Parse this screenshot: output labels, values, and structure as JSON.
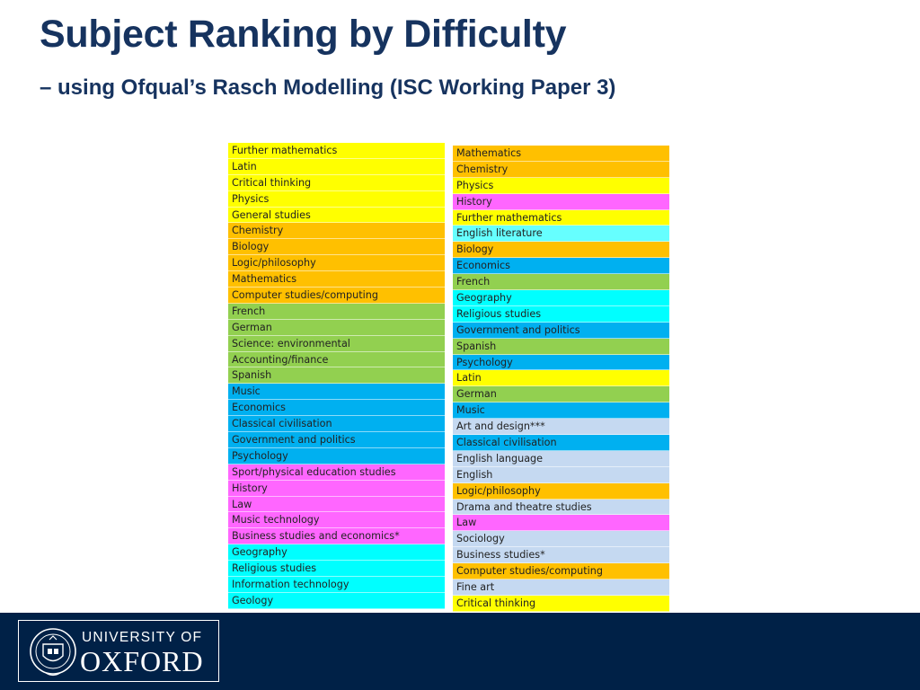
{
  "title": "Subject Ranking by Difficulty",
  "subtitle": "– using Ofqual’s Rasch Modelling (ISC Working Paper 3)",
  "colors": {
    "yellow": "#ffff00",
    "orange": "#ffc000",
    "green": "#92d050",
    "blue": "#00b0f0",
    "magenta": "#ff66ff",
    "cyan": "#00ffff",
    "lightcyan": "#66ffff",
    "lightblue": "#c5d9f1",
    "title": "#16335f",
    "footer": "#002147"
  },
  "left_column": [
    {
      "label": "Further mathematics",
      "color": "yellow"
    },
    {
      "label": "Latin",
      "color": "yellow"
    },
    {
      "label": "Critical thinking",
      "color": "yellow"
    },
    {
      "label": "Physics",
      "color": "yellow"
    },
    {
      "label": "General studies",
      "color": "yellow"
    },
    {
      "label": "Chemistry",
      "color": "orange"
    },
    {
      "label": "Biology",
      "color": "orange"
    },
    {
      "label": "Logic/philosophy",
      "color": "orange"
    },
    {
      "label": "Mathematics",
      "color": "orange"
    },
    {
      "label": "Computer studies/computing",
      "color": "orange"
    },
    {
      "label": "French",
      "color": "green"
    },
    {
      "label": "German",
      "color": "green"
    },
    {
      "label": "Science: environmental",
      "color": "green"
    },
    {
      "label": "Accounting/finance",
      "color": "green"
    },
    {
      "label": "Spanish",
      "color": "green"
    },
    {
      "label": "Music",
      "color": "blue"
    },
    {
      "label": "Economics",
      "color": "blue"
    },
    {
      "label": "Classical civilisation",
      "color": "blue"
    },
    {
      "label": "Government and politics",
      "color": "blue"
    },
    {
      "label": "Psychology",
      "color": "blue"
    },
    {
      "label": "Sport/physical education studies",
      "color": "magenta"
    },
    {
      "label": "History",
      "color": "magenta"
    },
    {
      "label": "Law",
      "color": "magenta"
    },
    {
      "label": "Music technology",
      "color": "magenta"
    },
    {
      "label": "Business studies and economics*",
      "color": "magenta"
    },
    {
      "label": "Geography",
      "color": "cyan"
    },
    {
      "label": "Religious studies",
      "color": "cyan"
    },
    {
      "label": "Information technology",
      "color": "cyan"
    },
    {
      "label": "Geology",
      "color": "cyan"
    }
  ],
  "right_column": [
    {
      "label": "Mathematics",
      "color": "orange"
    },
    {
      "label": "Chemistry",
      "color": "orange"
    },
    {
      "label": "Physics",
      "color": "yellow"
    },
    {
      "label": "History",
      "color": "magenta"
    },
    {
      "label": "Further mathematics",
      "color": "yellow"
    },
    {
      "label": "English literature",
      "color": "lightcyan"
    },
    {
      "label": "Biology",
      "color": "orange"
    },
    {
      "label": "Economics",
      "color": "blue"
    },
    {
      "label": "French",
      "color": "green"
    },
    {
      "label": "Geography",
      "color": "cyan"
    },
    {
      "label": "Religious studies",
      "color": "cyan"
    },
    {
      "label": "Government and politics",
      "color": "blue"
    },
    {
      "label": "Spanish",
      "color": "green"
    },
    {
      "label": "Psychology",
      "color": "blue"
    },
    {
      "label": "Latin",
      "color": "yellow"
    },
    {
      "label": "German",
      "color": "green"
    },
    {
      "label": "Music",
      "color": "blue"
    },
    {
      "label": "Art and design***",
      "color": "lightblue"
    },
    {
      "label": "Classical civilisation",
      "color": "blue"
    },
    {
      "label": "English language",
      "color": "lightblue"
    },
    {
      "label": "English",
      "color": "lightblue"
    },
    {
      "label": "Logic/philosophy",
      "color": "orange"
    },
    {
      "label": "Drama and theatre studies",
      "color": "lightblue"
    },
    {
      "label": "Law",
      "color": "magenta"
    },
    {
      "label": "Sociology",
      "color": "lightblue"
    },
    {
      "label": "Business studies*",
      "color": "lightblue"
    },
    {
      "label": "Computer studies/computing",
      "color": "orange"
    },
    {
      "label": "Fine art",
      "color": "lightblue"
    },
    {
      "label": "Critical thinking",
      "color": "yellow"
    }
  ],
  "footer": {
    "logo_line1": "UNIVERSITY OF",
    "logo_line2": "OXFORD",
    "crest_icon": "oxford-crest-icon"
  }
}
